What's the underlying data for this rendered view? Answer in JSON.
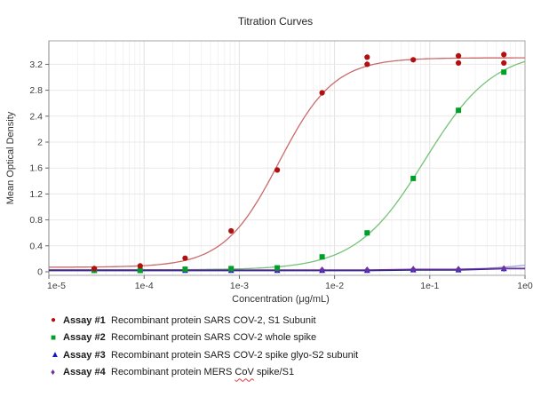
{
  "chart_data": {
    "type": "line",
    "title": "Titration Curves",
    "xlabel": "Concentration (μg/mL)",
    "ylabel": "Mean Optical Density",
    "x_scale": "log",
    "xlim": [
      1e-05,
      1
    ],
    "ylim": [
      0,
      3.55
    ],
    "grid": "on",
    "legend_position": "bottom-left",
    "x_ticks": [
      {
        "label": "1e-5",
        "value": 1e-05
      },
      {
        "label": "1e-4",
        "value": 0.0001
      },
      {
        "label": "1e-3",
        "value": 0.001
      },
      {
        "label": "1e-2",
        "value": 0.01
      },
      {
        "label": "1e-1",
        "value": 0.1
      },
      {
        "label": "1e0",
        "value": 1
      }
    ],
    "y_ticks": [
      {
        "label": "0",
        "value": 0
      },
      {
        "label": "0.4",
        "value": 0.4
      },
      {
        "label": "0.8",
        "value": 0.8
      },
      {
        "label": "1.2",
        "value": 1.2
      },
      {
        "label": "1.6",
        "value": 1.6
      },
      {
        "label": "2",
        "value": 2
      },
      {
        "label": "2.4",
        "value": 2.4
      },
      {
        "label": "2.8",
        "value": 2.8
      },
      {
        "label": "3.2",
        "value": 3.2
      }
    ],
    "concentrations": [
      3e-05,
      9.1e-05,
      0.00027,
      0.00082,
      0.0025,
      0.0074,
      0.022,
      0.067,
      0.2,
      0.6
    ],
    "series": [
      {
        "name": "Assay #1",
        "marker": "circle",
        "marker_color": "#b01010",
        "line_color": "#c96a6a",
        "z": 4,
        "values": [
          0.05,
          0.09,
          0.21,
          0.63,
          1.57,
          2.76,
          3.2,
          3.27,
          3.33,
          3.35
        ],
        "extra_points": [
          {
            "x": 0.022,
            "y": 3.31
          },
          {
            "x": 0.2,
            "y": 3.22
          },
          {
            "x": 0.6,
            "y": 3.22
          }
        ],
        "fit": {
          "bottom": 0.07,
          "top": 3.3,
          "ec50": 0.0026,
          "hill": 1.5
        }
      },
      {
        "name": "Assay #2",
        "marker": "square",
        "marker_color": "#00a028",
        "line_color": "#74c276",
        "z": 3,
        "values": [
          0.02,
          0.02,
          0.04,
          0.05,
          0.06,
          0.23,
          0.6,
          1.44,
          2.49,
          3.08
        ],
        "fit": {
          "bottom": 0.03,
          "top": 3.42,
          "ec50": 0.089,
          "hill": 1.2
        }
      },
      {
        "name": "Assay #3",
        "marker": "triangle",
        "marker_color": "#1414c8",
        "line_color": "#9aa0dd",
        "data_line_color": "#1c1c7e",
        "data_line_width": 1.8,
        "z": 1,
        "values": [
          0.02,
          0.02,
          0.02,
          0.02,
          0.02,
          0.02,
          0.02,
          0.03,
          0.03,
          0.05
        ],
        "fit": {
          "bottom": 0.025,
          "top": 0.55,
          "ec50": 5,
          "hill": 1.1
        }
      },
      {
        "name": "Assay #4",
        "marker": "diamond",
        "marker_color": "#7030a0",
        "data_line_color": "#7030a0",
        "data_line_width": 1.2,
        "z": 2,
        "values": [
          0.03,
          0.03,
          0.03,
          0.03,
          0.03,
          0.03,
          0.03,
          0.04,
          0.04,
          0.05
        ]
      }
    ],
    "colors": {
      "grid_major": "#e2e2e2",
      "grid_minor": "#f0f0f0",
      "grid_h": "#ece7e7",
      "frame": "#a6a6a6",
      "axis_left": "#8a8a8a",
      "tick": "#666666"
    }
  },
  "legend": {
    "items": [
      {
        "label": "Assay #1",
        "marker_glyph": "●",
        "color": "#b01010",
        "desc_parts": [
          "Recombinant protein SARS COV-2, S1 Subunit",
          "",
          ""
        ]
      },
      {
        "label": "Assay #2",
        "marker_glyph": "■",
        "color": "#00a028",
        "desc_parts": [
          "Recombinant protein SARS COV-2 whole spike",
          "",
          ""
        ]
      },
      {
        "label": "Assay #3",
        "marker_glyph": "▲",
        "color": "#1414c8",
        "desc_parts": [
          "Recombinant protein SARS COV-2 spike glyo-S2 subunit",
          "",
          ""
        ]
      },
      {
        "label": "Assay #4",
        "marker_glyph": "♦",
        "color": "#7030a0",
        "desc_parts": [
          "Recombinant protein MERS ",
          "CoV",
          " spike/S1"
        ]
      }
    ]
  }
}
